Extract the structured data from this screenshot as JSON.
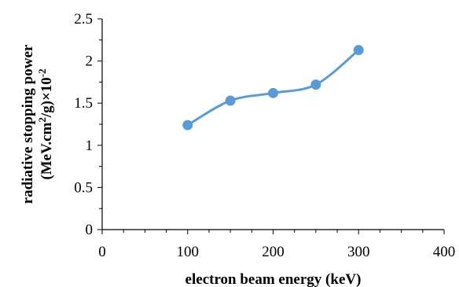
{
  "chart_data": {
    "type": "line",
    "title": "",
    "xlabel": "electron beam energy (keV)",
    "ylabel_line1": "radiative stopping power",
    "ylabel_line2_prefix": "(MeV.cm",
    "ylabel_line2_sup1": "2",
    "ylabel_line2_mid": "/g)×10",
    "ylabel_line2_sup2": "-2",
    "xlim": [
      0,
      400
    ],
    "ylim": [
      0,
      2.5
    ],
    "x_ticks": [
      "0",
      "100",
      "200",
      "300",
      "400"
    ],
    "y_ticks": [
      "0",
      "0.5",
      "1",
      "1.5",
      "2",
      "2.5"
    ],
    "grid": false,
    "legend": "none",
    "series": [
      {
        "x": [
          100,
          150,
          200,
          250,
          300
        ],
        "y": [
          1.24,
          1.53,
          1.62,
          1.72,
          2.13
        ],
        "color": "#5b9bd5",
        "smooth": true,
        "marker": "circle"
      }
    ]
  }
}
